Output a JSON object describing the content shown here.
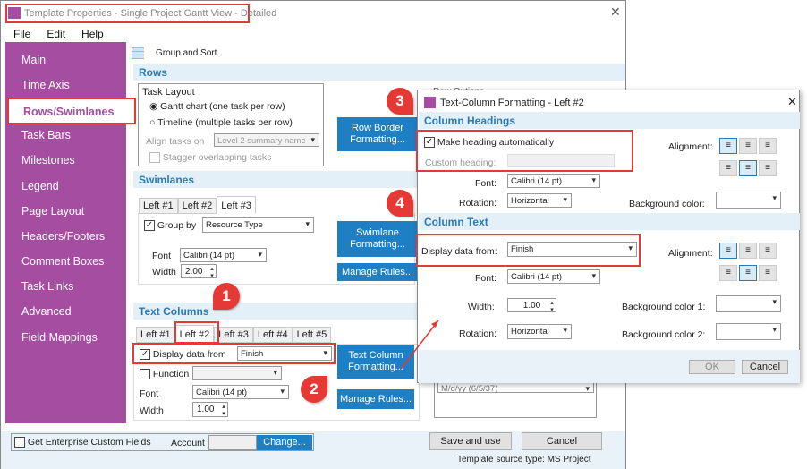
{
  "window": {
    "title": "Template Properties - Single Project Gantt View - Detailed",
    "menu": [
      "File",
      "Edit",
      "Help"
    ]
  },
  "sidebar": {
    "items": [
      "Main",
      "Time Axis",
      "Rows/Swimlanes",
      "Task Bars",
      "Milestones",
      "Legend",
      "Page Layout",
      "Headers/Footers",
      "Comment Boxes",
      "Task Links",
      "Advanced",
      "Field Mappings"
    ],
    "active": "Rows/Swimlanes"
  },
  "toolbar": {
    "group_sort": "Group and Sort"
  },
  "rows": {
    "title": "Rows",
    "task_layout": "Task Layout",
    "gantt": "Gantt chart (one task per row)",
    "timeline": "Timeline (multiple tasks per row)",
    "align_label": "Align tasks on",
    "align_value": "Level 2 summary name",
    "stagger": "Stagger overlapping tasks",
    "row_border_btn": "Row Border Formatting...",
    "row_options": "Row Options"
  },
  "swimlanes": {
    "title": "Swimlanes",
    "tabs": [
      "Left #1",
      "Left #2",
      "Left #3"
    ],
    "group_by": "Group by",
    "group_value": "Resource Type",
    "font_label": "Font",
    "font_value": "Calibri (14 pt)",
    "width_label": "Width",
    "width_value": "2.00",
    "format_btn": "Swimlane Formatting...",
    "rules_btn": "Manage Rules..."
  },
  "text_columns": {
    "title": "Text Columns",
    "tabs": [
      "Left #1",
      "Left #2",
      "Left #3",
      "Left #4",
      "Left #5"
    ],
    "display_label": "Display data from",
    "display_value": "Finish",
    "function_label": "Function",
    "font_label": "Font",
    "font_value": "Calibri (14 pt)",
    "width_label": "Width",
    "width_value": "1.00",
    "format_btn": "Text Column Formatting...",
    "rules_btn": "Manage Rules...",
    "date_format": "M/d/yy (6/5/37)"
  },
  "footer": {
    "enterprise": "Get Enterprise Custom Fields",
    "account": "Account",
    "change": "Change...",
    "save": "Save and use",
    "cancel": "Cancel",
    "source": "Template source type: MS Project"
  },
  "dialog": {
    "title": "Text-Column Formatting - Left #2",
    "headings": {
      "title": "Column Headings",
      "auto": "Make heading automatically",
      "custom": "Custom heading:",
      "font_label": "Font:",
      "font_value": "Calibri (14 pt)",
      "rotation_label": "Rotation:",
      "rotation_value": "Horizontal",
      "alignment": "Alignment:",
      "bg": "Background color:"
    },
    "text": {
      "title": "Column Text",
      "display_label": "Display data from:",
      "display_value": "Finish",
      "font_label": "Font:",
      "font_value": "Calibri (14 pt)",
      "width_label": "Width:",
      "width_value": "1.00",
      "rotation_label": "Rotation:",
      "rotation_value": "Horizontal",
      "alignment": "Alignment:",
      "bg1": "Background color 1:",
      "bg2": "Background color 2:"
    },
    "ok": "OK",
    "cancel": "Cancel"
  },
  "callouts": [
    "1",
    "2",
    "3",
    "4"
  ],
  "colors": {
    "sidebar": "#a54ea1",
    "accent": "#1f7fc4",
    "annotation": "#e53935",
    "section": "#e3f0f7"
  }
}
